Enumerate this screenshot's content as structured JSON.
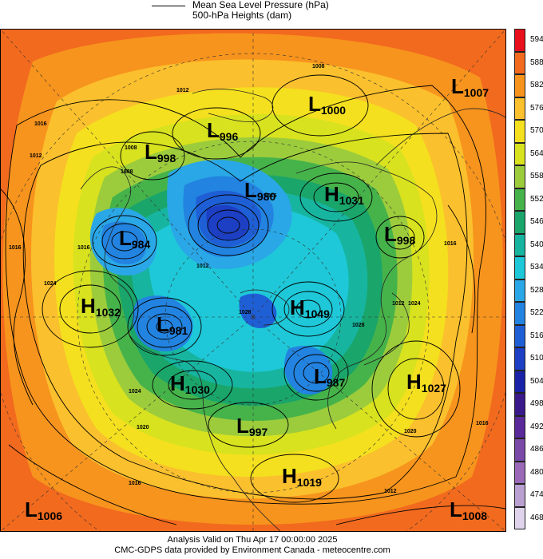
{
  "legend": {
    "line1": "Mean Sea Level Pressure (hPa)",
    "line2": "500-hPa Heights (dam)"
  },
  "colorbar": {
    "levels": [
      "594",
      "588",
      "582",
      "576",
      "570",
      "564",
      "558",
      "552",
      "546",
      "540",
      "534",
      "528",
      "522",
      "516",
      "510",
      "504",
      "498",
      "492",
      "486",
      "480",
      "474",
      "468"
    ],
    "colors": [
      "#e8101c",
      "#f26a1e",
      "#f7941d",
      "#fbc02d",
      "#f4e01e",
      "#d8e21e",
      "#9ccc3c",
      "#46b34a",
      "#1aa56a",
      "#17b5a0",
      "#1ec8d8",
      "#2aa7e6",
      "#2383e0",
      "#1f5fd6",
      "#1d3fc4",
      "#1a23a8",
      "#3a1a8a",
      "#5a2a9a",
      "#7a4aa8",
      "#9a6ab8",
      "#baa0d0",
      "#e0d4ec"
    ]
  },
  "centers": [
    {
      "letter": "L",
      "value": "1007"
    },
    {
      "letter": "L",
      "value": "1000"
    },
    {
      "letter": "L",
      "value": "996"
    },
    {
      "letter": "L",
      "value": "998"
    },
    {
      "letter": "L",
      "value": "980"
    },
    {
      "letter": "H",
      "value": "1031"
    },
    {
      "letter": "L",
      "value": "984"
    },
    {
      "letter": "L",
      "value": "998"
    },
    {
      "letter": "H",
      "value": "1032"
    },
    {
      "letter": "L",
      "value": "981"
    },
    {
      "letter": "H",
      "value": "1049"
    },
    {
      "letter": "L",
      "value": "987"
    },
    {
      "letter": "H",
      "value": "1030"
    },
    {
      "letter": "H",
      "value": "1027"
    },
    {
      "letter": "L",
      "value": "997"
    },
    {
      "letter": "H",
      "value": "1019"
    },
    {
      "letter": "L",
      "value": "1006"
    },
    {
      "letter": "L",
      "value": "1008"
    }
  ],
  "isobar_labels": [
    "1008",
    "1016",
    "1012",
    "1012",
    "1008",
    "1016",
    "1024",
    "1024",
    "1016",
    "1020",
    "1020",
    "1016",
    "1012",
    "1012",
    "1016",
    "1024",
    "1016",
    "1016",
    "1012",
    "1028",
    "1028",
    "1008"
  ],
  "footer": {
    "line1": "Analysis Valid on Thu Apr 17 00:00:00 2025",
    "line2": "CMC-GDPS data provided by Environment Canada - meteocentre.com"
  }
}
